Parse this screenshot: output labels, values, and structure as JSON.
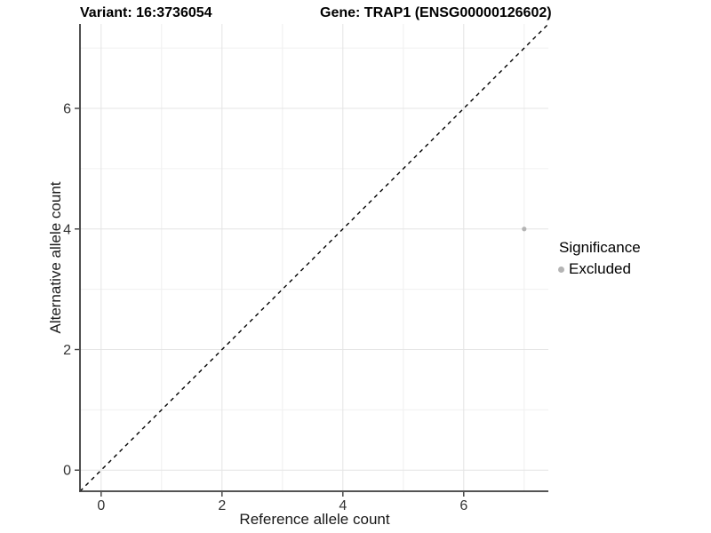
{
  "titles": {
    "variant": "Variant: 16:3736054",
    "gene": "Gene: TRAP1 (ENSG00000126602)"
  },
  "chart_data": {
    "type": "scatter",
    "title_left": "Variant: 16:3736054",
    "title_right": "Gene: TRAP1 (ENSG00000126602)",
    "xlabel": "Reference allele count",
    "ylabel": "Alternative allele count",
    "xlim": [
      -0.35,
      7.4
    ],
    "ylim": [
      -0.35,
      7.4
    ],
    "x_major_ticks": [
      0,
      2,
      4,
      6
    ],
    "y_major_ticks": [
      0,
      2,
      4,
      6
    ],
    "x_minor_gridlines": [
      1,
      3,
      5,
      7
    ],
    "y_minor_gridlines": [
      1,
      3,
      5,
      7
    ],
    "grid": true,
    "points": [
      {
        "x": 7,
        "y": 4,
        "series": "Excluded"
      }
    ],
    "reference_line": {
      "style": "dashed",
      "slope": 1,
      "intercept": 0,
      "color": "#000000"
    },
    "legend": {
      "title": "Significance",
      "position": "right",
      "items": [
        {
          "label": "Excluded",
          "color": "#b4b4b4",
          "marker": "circle"
        }
      ]
    },
    "colors": {
      "point": "#b4b4b4",
      "grid_major": "#e4e4e4",
      "grid_minor": "#f0f0f0",
      "axis_line": "#3c3c3c",
      "tick_label": "#333333"
    }
  }
}
